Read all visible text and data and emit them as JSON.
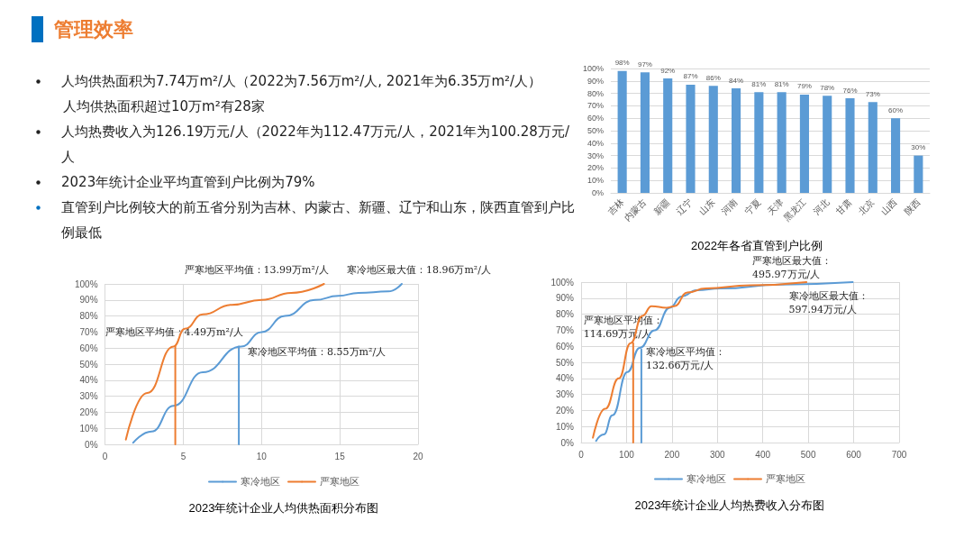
{
  "chart_data": [
    {
      "type": "other",
      "title": "管理效率",
      "annotations": [
        "人均供热面积为7.74万m²/人（2022为7.56万m²/人, 2021年为6.35万m²/人）",
        "人均供热面积超过10万m²有28家",
        "人均热费收入为126.19万元/人（2022年为112.47万元/人，2021年为100.28万元/人",
        "2023年统计企业平均直管到户比例为79%",
        "直管到户比例较大的前五省分别为吉林、内蒙古、新疆、辽宁和山东，陕西直管到户比例最低"
      ]
    },
    {
      "type": "bar",
      "title": "2022年各省直管到户比例",
      "categories": [
        "吉林",
        "内蒙古",
        "新疆",
        "辽宁",
        "山东",
        "河南",
        "宁夏",
        "天津",
        "黑龙江",
        "河北",
        "甘肃",
        "北京",
        "山西",
        "陕西"
      ],
      "values": [
        98,
        97,
        92,
        87,
        86,
        84,
        81,
        81,
        79,
        78,
        76,
        73,
        60,
        30
      ],
      "value_labels": [
        "98%",
        "97%",
        "92%",
        "87%",
        "86%",
        "84%",
        "81%",
        "81%",
        "79%",
        "78%",
        "76%",
        "73%",
        "60%",
        "30%"
      ],
      "color": "#5b9bd5",
      "ylim": [
        0,
        100
      ],
      "yticks": [
        {
          "value": 0,
          "label": "0%"
        },
        {
          "value": 10,
          "label": "10%"
        },
        {
          "value": 20,
          "label": "20%"
        },
        {
          "value": 30,
          "label": "30%"
        },
        {
          "value": 40,
          "label": "40%"
        },
        {
          "value": 50,
          "label": "50%"
        },
        {
          "value": 60,
          "label": "60%"
        },
        {
          "value": 70,
          "label": "70%"
        },
        {
          "value": 80,
          "label": "80%"
        },
        {
          "value": 90,
          "label": "90%"
        },
        {
          "value": 100,
          "label": "100%"
        }
      ],
      "grid": "y"
    },
    {
      "type": "line",
      "title": "2023年统计企业人均供热面积分布图",
      "xlim": [
        0,
        20
      ],
      "xticks": [
        0,
        5,
        10,
        15,
        20
      ],
      "ylim": [
        0,
        100
      ],
      "yticks": [
        {
          "value": 0,
          "label": "0%"
        },
        {
          "value": 10,
          "label": "10%"
        },
        {
          "value": 20,
          "label": "20%"
        },
        {
          "value": 30,
          "label": "30%"
        },
        {
          "value": 40,
          "label": "40%"
        },
        {
          "value": 50,
          "label": "50%"
        },
        {
          "value": 60,
          "label": "60%"
        },
        {
          "value": 70,
          "label": "70%"
        },
        {
          "value": 80,
          "label": "80%"
        },
        {
          "value": 90,
          "label": "90%"
        },
        {
          "value": 100,
          "label": "100%"
        }
      ],
      "grid": true,
      "legend": "bottom",
      "marker": "none",
      "series": [
        {
          "name": "寒冷地区",
          "color": "#5b9bd5",
          "x": [
            1.8,
            2.97,
            4.38,
            6.25,
            8.7,
            10.0,
            11.5,
            13.4,
            14.9,
            16.2,
            18.1,
            18.96
          ],
          "values": [
            1,
            8,
            24,
            45,
            61,
            70,
            80,
            90,
            92.5,
            94.4,
            95.3,
            100
          ]
        },
        {
          "name": "严寒地区",
          "color": "#ed7d31",
          "x": [
            1.33,
            2.69,
            4.38,
            5.1,
            6.25,
            8.1,
            10.0,
            11.9,
            13.99
          ],
          "values": [
            3,
            32,
            61,
            72,
            81,
            87,
            90,
            94.4,
            100
          ]
        },
        {
          "color": "#ed7d31",
          "x": [
            4.49,
            4.49
          ],
          "values": [
            0,
            61
          ]
        },
        {
          "color": "#5b9bd5",
          "x": [
            8.55,
            8.55
          ],
          "values": [
            0,
            61
          ]
        }
      ],
      "annotations": [
        {
          "text": "严寒地区平均值：13.99万m²/人",
          "x": 13.99,
          "y": 100
        },
        {
          "text": "寒冷地区最大值：18.96万m²/人",
          "x": 18.96,
          "y": 100
        },
        {
          "text": "严寒地区平均值：4.49万m²/人",
          "x": 4.49,
          "y": 61
        },
        {
          "text": "寒冷地区平均值：8.55万m²/人",
          "x": 8.55,
          "y": 61
        }
      ]
    },
    {
      "type": "line",
      "title": "2023年统计企业人均热费收入分布图",
      "xlim": [
        0,
        700
      ],
      "xticks": [
        0,
        100,
        200,
        300,
        400,
        500,
        600,
        700
      ],
      "ylim": [
        0,
        100
      ],
      "yticks": [
        {
          "value": 0,
          "label": "0%"
        },
        {
          "value": 10,
          "label": "10%"
        },
        {
          "value": 20,
          "label": "20%"
        },
        {
          "value": 30,
          "label": "30%"
        },
        {
          "value": 40,
          "label": "40%"
        },
        {
          "value": 50,
          "label": "50%"
        },
        {
          "value": 60,
          "label": "60%"
        },
        {
          "value": 70,
          "label": "70%"
        },
        {
          "value": 80,
          "label": "80%"
        },
        {
          "value": 90,
          "label": "90%"
        },
        {
          "value": 100,
          "label": "100%"
        }
      ],
      "grid": true,
      "legend": "bottom",
      "marker": "none",
      "series": [
        {
          "name": "寒冷地区",
          "color": "#5b9bd5",
          "x": [
            33,
            50,
            69,
            102,
            129,
            162,
            195,
            221,
            254,
            307,
            439,
            597.94
          ],
          "values": [
            1,
            5,
            17,
            44,
            59,
            70,
            84,
            91,
            95,
            96,
            98.5,
            100
          ]
        },
        {
          "name": "严寒地区",
          "color": "#ed7d31",
          "x": [
            26,
            53,
            83,
            109,
            135,
            155,
            188,
            205,
            234,
            274,
            373,
            495.97
          ],
          "values": [
            3,
            21,
            40,
            62,
            79,
            85,
            84,
            85,
            93.5,
            96,
            98,
            100
          ]
        },
        {
          "color": "#ed7d31",
          "x": [
            114.69,
            114.69
          ],
          "values": [
            0,
            62
          ]
        },
        {
          "color": "#5b9bd5",
          "x": [
            132.66,
            132.66
          ],
          "values": [
            0,
            58
          ]
        }
      ],
      "annotations": [
        {
          "text": "严寒地区最大值：495.97万元/人",
          "x": 495.97,
          "y": 100
        },
        {
          "text": "寒冷地区最大值：597.94万元/人",
          "x": 597.94,
          "y": 100
        },
        {
          "text": "严寒地区平均值：114.69万元/人",
          "x": 114.69,
          "y": 62
        },
        {
          "text": "寒冷地区平均值：132.66万元/人",
          "x": 132.66,
          "y": 58
        }
      ]
    }
  ]
}
